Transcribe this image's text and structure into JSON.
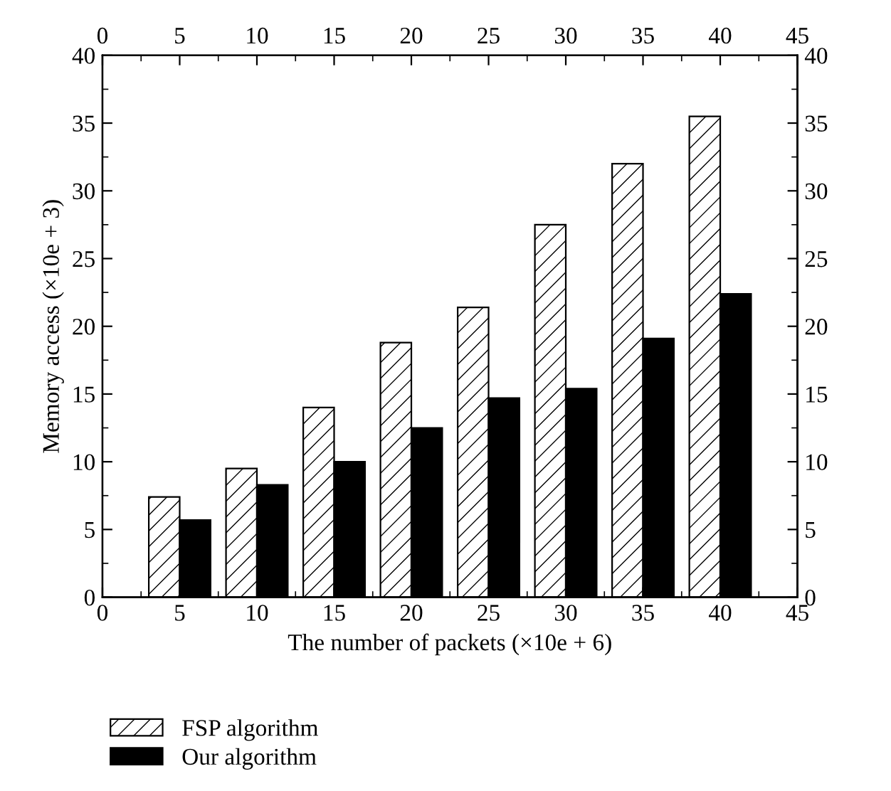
{
  "chart_data": {
    "type": "bar",
    "xlabel": "The number of packets (×10e + 6)",
    "ylabel": "Memory access (×10e + 3)",
    "x": [
      5,
      10,
      15,
      20,
      25,
      30,
      35,
      40
    ],
    "series": [
      {
        "name": "FSP algorithm",
        "color": "#ffffff",
        "values": [
          7.4,
          9.5,
          14.0,
          18.8,
          21.4,
          27.5,
          32.0,
          35.5
        ]
      },
      {
        "name": "Our algorithm",
        "color": "#000000",
        "values": [
          5.7,
          8.3,
          10.0,
          12.5,
          14.7,
          15.4,
          19.1,
          22.4
        ]
      }
    ],
    "xlim": [
      0,
      45
    ],
    "xticks": [
      0,
      5,
      10,
      15,
      20,
      25,
      30,
      35,
      40,
      45
    ],
    "x2lim": [
      0,
      45
    ],
    "x2ticks": [
      0,
      5,
      10,
      15,
      20,
      25,
      30,
      35,
      40,
      45
    ],
    "ylim": [
      0,
      40
    ],
    "yticks": [
      0,
      5,
      10,
      15,
      20,
      25,
      30,
      35,
      40
    ],
    "y2lim": [
      0,
      40
    ],
    "y2ticks": [
      0,
      5,
      10,
      15,
      20,
      25,
      30,
      35,
      40
    ],
    "grid": false,
    "legend": "bottom left"
  }
}
